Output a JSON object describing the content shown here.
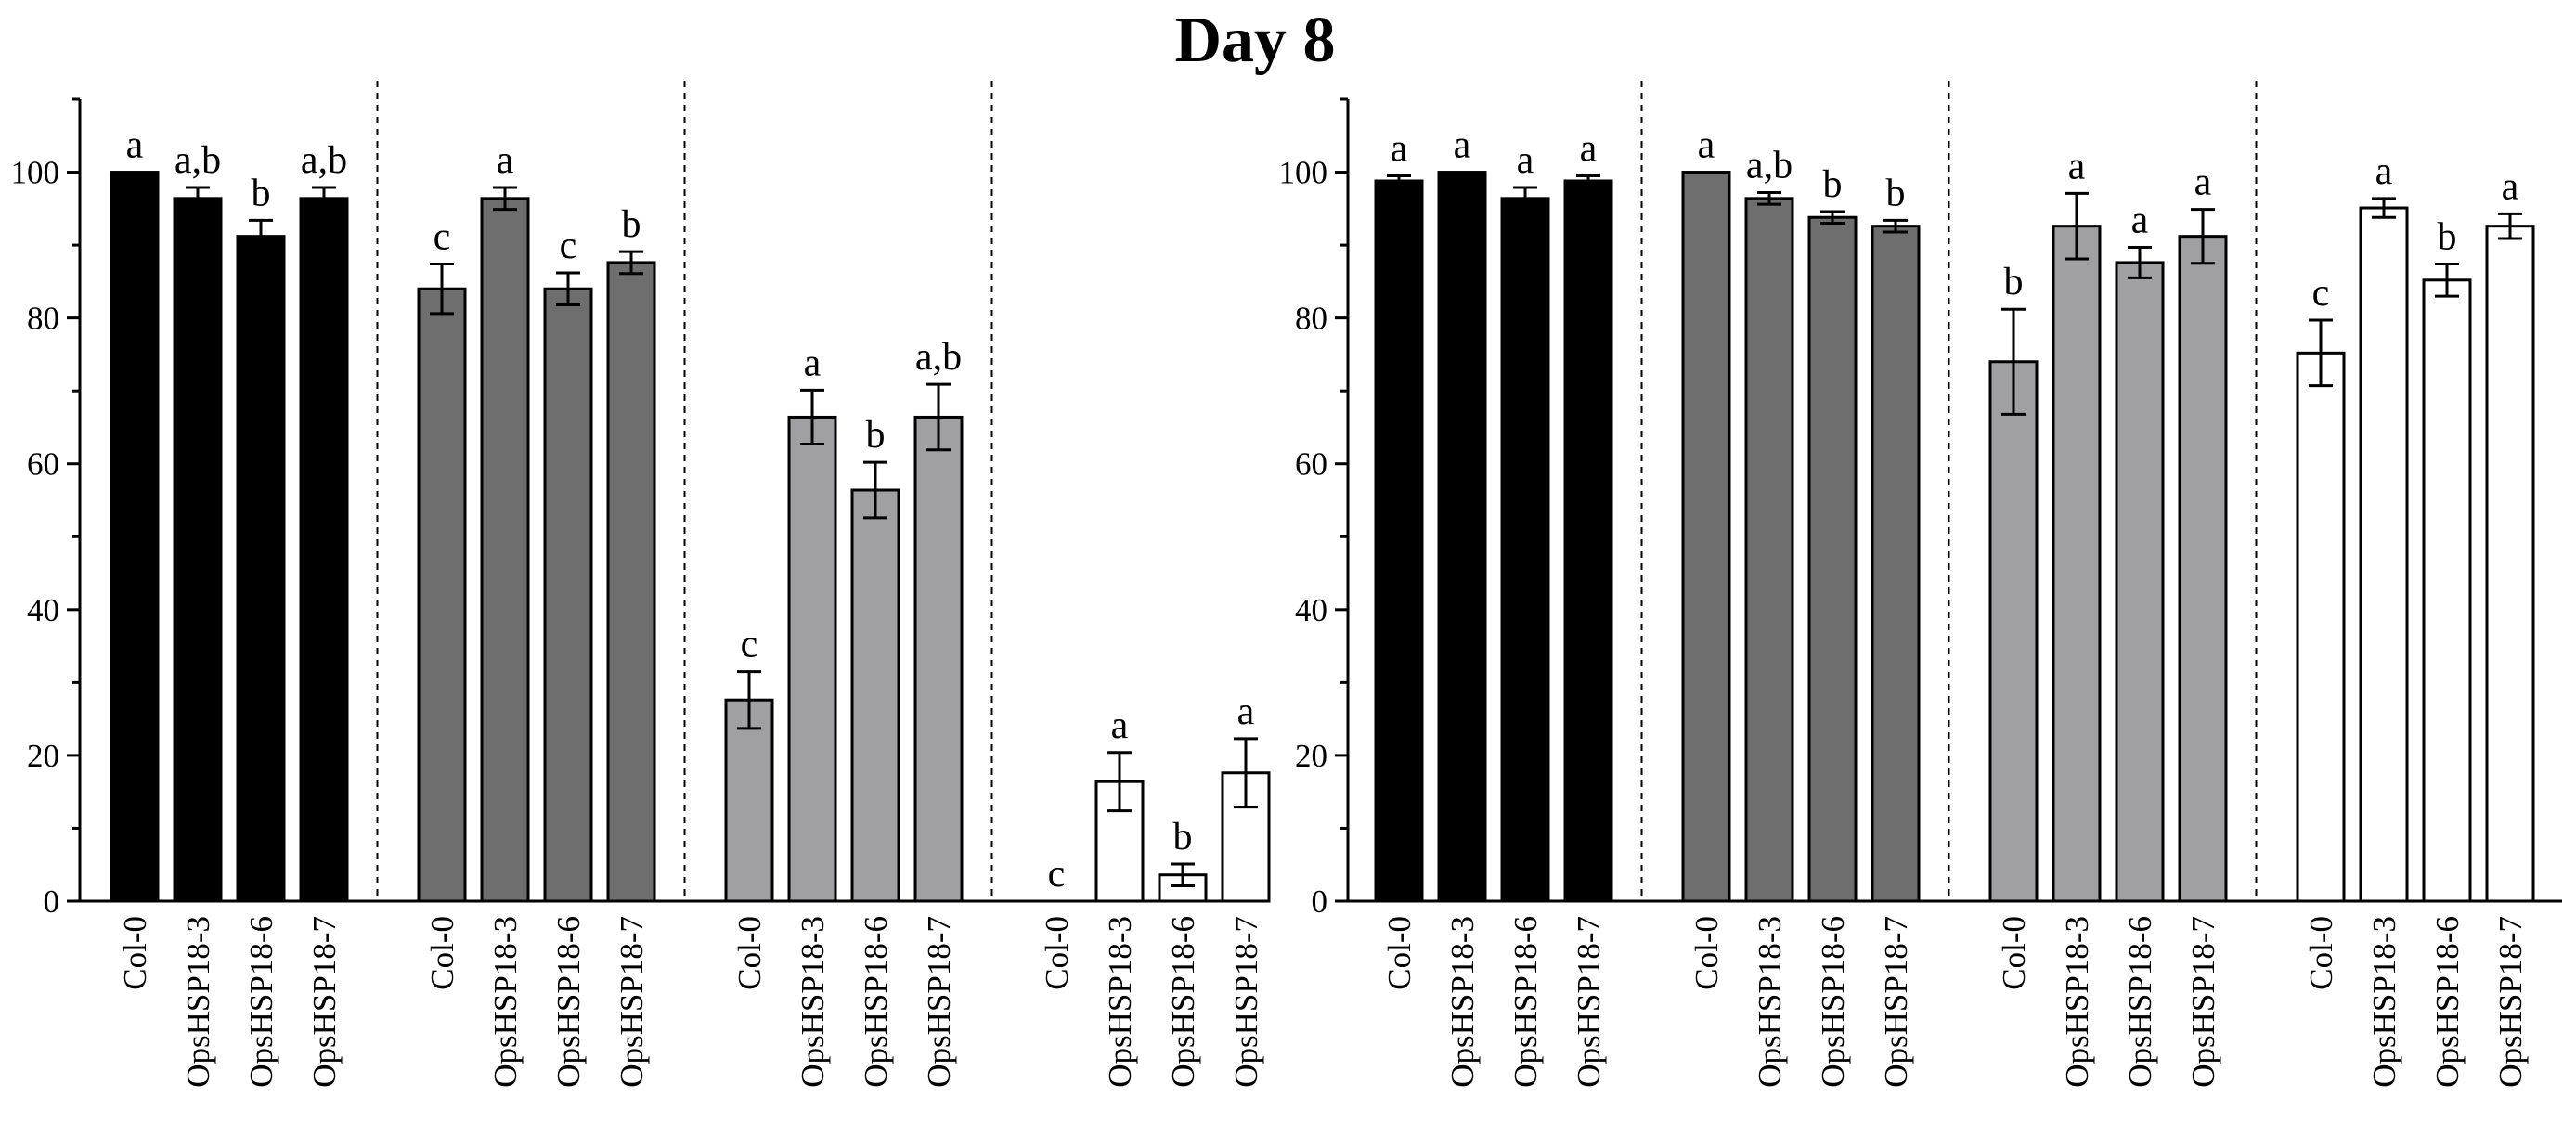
{
  "chart_data": {
    "type": "bar",
    "title": "Day 8",
    "ylim": [
      0,
      110
    ],
    "ytick_step": 20,
    "ytick_minor_step": 10,
    "colors": {
      "black": "#000000",
      "dark_gray": "#6e6e6e",
      "light_gray": "#a0a0a4",
      "white": "#ffffff",
      "axis": "#000000"
    },
    "panels": [
      {
        "name": "left-panel",
        "groups": [
          {
            "fill": "black",
            "categories": [
              "Col-0",
              "OpsHSP18-3",
              "OpsHSP18-6",
              "OpsHSP18-7"
            ],
            "values": [
              100,
              96.4,
              91.2,
              96.4
            ],
            "errors": [
              0,
              1.5,
              2.2,
              1.5
            ],
            "labels": [
              "a",
              "a,b",
              "b",
              "a,b"
            ]
          },
          {
            "fill": "dark_gray",
            "categories": [
              "Col-0",
              "OpsHSP18-3",
              "OpsHSP18-6",
              "OpsHSP18-7"
            ],
            "values": [
              84,
              96.4,
              84,
              87.6
            ],
            "errors": [
              3.4,
              1.5,
              2.2,
              1.5
            ],
            "labels": [
              "c",
              "a",
              "c",
              "b"
            ]
          },
          {
            "fill": "light_gray",
            "categories": [
              "Col-0",
              "OpsHSP18-3",
              "OpsHSP18-6",
              "OpsHSP18-7"
            ],
            "values": [
              27.6,
              66.4,
              56.4,
              66.4
            ],
            "errors": [
              3.9,
              3.7,
              3.8,
              4.5
            ],
            "labels": [
              "c",
              "a",
              "b",
              "a,b"
            ]
          },
          {
            "fill": "white",
            "categories": [
              "Col-0",
              "OpsHSP18-3",
              "OpsHSP18-6",
              "OpsHSP18-7"
            ],
            "values": [
              0,
              16.4,
              3.6,
              17.6
            ],
            "errors": [
              0,
              4,
              1.5,
              4.7
            ],
            "labels": [
              "c",
              "a",
              "b",
              "a"
            ]
          }
        ]
      },
      {
        "name": "right-panel",
        "groups": [
          {
            "fill": "black",
            "categories": [
              "Col-0",
              "OpsHSP18-3",
              "OpsHSP18-6",
              "OpsHSP18-7"
            ],
            "values": [
              98.8,
              100,
              96.4,
              98.8
            ],
            "errors": [
              0.7,
              0,
              1.5,
              0.7
            ],
            "labels": [
              "a",
              "a",
              "a",
              "a"
            ]
          },
          {
            "fill": "dark_gray",
            "categories": [
              "Col-0",
              "OpsHSP18-3",
              "OpsHSP18-6",
              "OpsHSP18-7"
            ],
            "values": [
              100,
              96.4,
              93.8,
              92.6
            ],
            "errors": [
              0,
              0.8,
              0.8,
              0.8
            ],
            "labels": [
              "a",
              "a,b",
              "b",
              "b"
            ]
          },
          {
            "fill": "light_gray",
            "categories": [
              "Col-0",
              "OpsHSP18-3",
              "OpsHSP18-6",
              "OpsHSP18-7"
            ],
            "values": [
              74,
              92.6,
              87.6,
              91.2
            ],
            "errors": [
              7.2,
              4.5,
              2.1,
              3.7
            ],
            "labels": [
              "b",
              "a",
              "a",
              "a"
            ]
          },
          {
            "fill": "white",
            "categories": [
              "Col-0",
              "OpsHSP18-3",
              "OpsHSP18-6",
              "OpsHSP18-7"
            ],
            "values": [
              75.2,
              95.1,
              85.2,
              92.6
            ],
            "errors": [
              4.5,
              1.3,
              2.2,
              1.7
            ],
            "labels": [
              "c",
              "a",
              "b",
              "a"
            ]
          }
        ]
      }
    ]
  }
}
